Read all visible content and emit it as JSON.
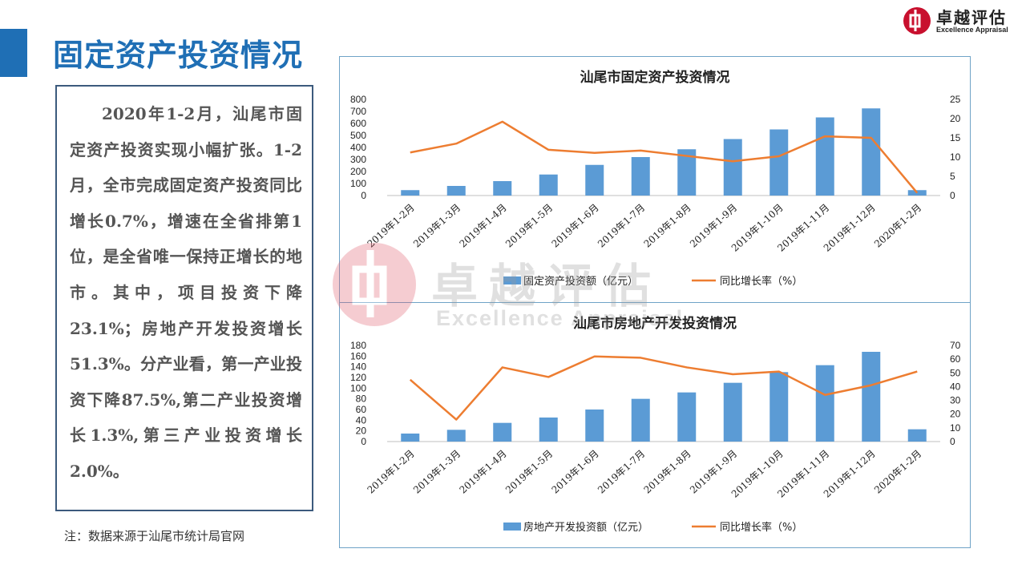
{
  "header": {
    "title": "固定资产投资情况",
    "logo_name": "卓越评估",
    "logo_tagline": "Excellence Appraisal"
  },
  "summary": {
    "text": "2020年1-2月，汕尾市固定资产投资实现小幅扩张。1-2月，全市完成固定资产投资同比增长0.7%，增速在全省排第1位，是全省唯一保持正增长的地市。其中，项目投资下降23.1%；房地产开发投资增长51.3%。分产业看，第一产业投资下降87.5%,第二产业投资增长1.3%,第三产业投资增长2.0%。"
  },
  "note": "注：数据来源于汕尾市统计局官网",
  "watermark": {
    "cn": "卓越评估",
    "en": "Excellence Appraisal"
  },
  "colors": {
    "accent": "#1f6fb5",
    "bar": "#5b9bd5",
    "line": "#ed7d31",
    "logo_red": "#c8102e"
  },
  "chart_data": [
    {
      "type": "bar",
      "title": "汕尾市固定资产投资情况",
      "categories": [
        "2019年1-2月",
        "2019年1-3月",
        "2019年1-4月",
        "2019年1-5月",
        "2019年1-6月",
        "2019年1-7月",
        "2019年1-8月",
        "2019年1-9月",
        "2019年1-10月",
        "2019年1-11月",
        "2019年1-12月",
        "2020年1-2月"
      ],
      "series": [
        {
          "name": "固定资产投资额（亿元）",
          "type": "bar",
          "axis": "left",
          "values": [
            45,
            80,
            120,
            175,
            255,
            320,
            385,
            470,
            550,
            650,
            725,
            45
          ]
        },
        {
          "name": "同比增长率（%）",
          "type": "line",
          "axis": "right",
          "values": [
            11.2,
            13.5,
            19.2,
            11.9,
            11.1,
            11.7,
            10.3,
            8.9,
            10.2,
            15.4,
            15.0,
            0.7
          ]
        }
      ],
      "ylim_left": [
        0,
        800
      ],
      "yticks_left": [
        0,
        100,
        200,
        300,
        400,
        500,
        600,
        700,
        800
      ],
      "ylim_right": [
        0,
        25
      ],
      "yticks_right": [
        0,
        5,
        10,
        15,
        20,
        25
      ],
      "grid": false,
      "legend": "bottom"
    },
    {
      "type": "bar",
      "title": "汕尾市房地产开发投资情况",
      "categories": [
        "2019年1-2月",
        "2019年1-3月",
        "2019年1-4月",
        "2019年1-5月",
        "2019年1-6月",
        "2019年1-7月",
        "2019年1-8月",
        "2019年1-9月",
        "2019年1-10月",
        "2019年1-11月",
        "2019年1-12月",
        "2020年1-2月"
      ],
      "series": [
        {
          "name": "房地产开发投资额（亿元）",
          "type": "bar",
          "axis": "left",
          "values": [
            15,
            22,
            35,
            45,
            60,
            80,
            92,
            110,
            130,
            143,
            168,
            23
          ]
        },
        {
          "name": "同比增长率（%）",
          "type": "line",
          "axis": "right",
          "values": [
            45,
            16,
            54,
            47,
            62,
            61,
            54,
            49,
            51,
            34,
            41,
            51
          ]
        }
      ],
      "ylim_left": [
        0,
        180
      ],
      "yticks_left": [
        0,
        20,
        40,
        60,
        80,
        100,
        120,
        140,
        160,
        180
      ],
      "ylim_right": [
        0,
        70
      ],
      "yticks_right": [
        0,
        10,
        20,
        30,
        40,
        50,
        60,
        70
      ],
      "grid": false,
      "legend": "bottom"
    }
  ]
}
